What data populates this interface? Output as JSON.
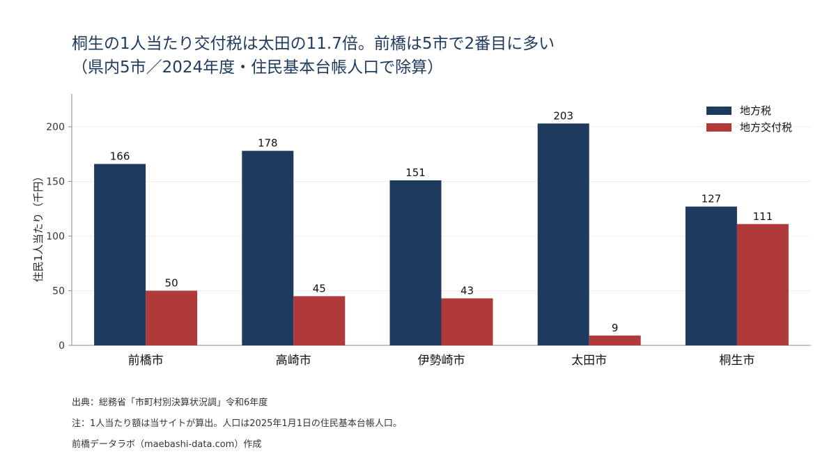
{
  "title": {
    "line1": "桐生の1人当たり交付税は太田の11.7倍。前橋は5市で2番目に多い",
    "line2": "（県内5市／2024年度・住民基本台帳人口で除算）"
  },
  "chart_data": {
    "type": "bar",
    "categories": [
      "前橋市",
      "高崎市",
      "伊勢崎市",
      "太田市",
      "桐生市"
    ],
    "series": [
      {
        "name": "地方税",
        "values": [
          166,
          178,
          151,
          203,
          127
        ],
        "color": "#1f3a5f"
      },
      {
        "name": "地方交付税",
        "values": [
          50,
          45,
          43,
          9,
          111
        ],
        "color": "#b03a3a"
      }
    ],
    "ylabel": "住民1人当たり（千円）",
    "ylim": [
      0,
      230
    ],
    "yticks": [
      0,
      50,
      100,
      150,
      200
    ],
    "grid": true,
    "legend": "top-right"
  },
  "notes": {
    "source": "出典：総務省「市町村別決算状況調」令和6年度",
    "note": "注：1人当たり額は当サイトが算出。人口は2025年1月1日の住民基本台帳人口。",
    "credit": "前橋データラボ（maebashi-data.com）作成"
  }
}
